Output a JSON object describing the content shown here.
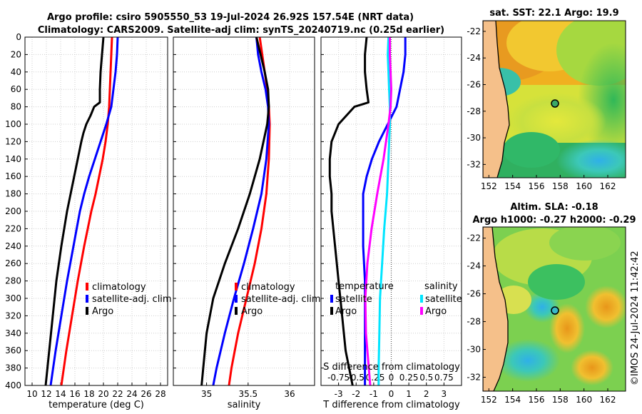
{
  "header": {
    "title_line1": "Argo profile: csiro 5905550_53 19-Jul-2024 26.92S 157.54E (NRT data)",
    "title_line2": "Climatology: CARS2009. Satellite-adj clim: synTS_20240719.nc (0.25d earlier)"
  },
  "colors": {
    "climatology": "#ff0000",
    "satellite": "#0000ff",
    "argo": "#000000",
    "satellite_salinity": "#00e5ff",
    "argo_salinity": "#ff00ff"
  },
  "chart_data": [
    {
      "type": "line",
      "name": "temperature-profile",
      "xlabel": "temperature (deg C)",
      "ylabel": "",
      "xlim": [
        9,
        29
      ],
      "ylim": [
        400,
        0
      ],
      "xticks": [
        10,
        12,
        14,
        16,
        18,
        20,
        22,
        24,
        26,
        28
      ],
      "yticks": [
        0,
        20,
        40,
        60,
        80,
        100,
        120,
        140,
        160,
        180,
        200,
        220,
        240,
        260,
        280,
        300,
        320,
        340,
        360,
        380,
        400
      ],
      "grid": true,
      "legend": [
        "climatology",
        "satellite-adj. clim",
        "Argo"
      ],
      "series": [
        {
          "name": "climatology",
          "color": "#ff0000",
          "depth": [
            0,
            20,
            40,
            60,
            80,
            100,
            120,
            140,
            160,
            180,
            200,
            240,
            280,
            320,
            360,
            400
          ],
          "values": [
            21.2,
            21.1,
            21.0,
            20.9,
            20.8,
            20.6,
            20.3,
            19.9,
            19.4,
            18.9,
            18.3,
            17.3,
            16.4,
            15.6,
            14.8,
            14.1
          ]
        },
        {
          "name": "satellite-adj. clim",
          "color": "#0000ff",
          "depth": [
            0,
            20,
            40,
            60,
            80,
            100,
            120,
            140,
            160,
            180,
            200,
            240,
            280,
            320,
            360,
            400
          ],
          "values": [
            22.0,
            21.9,
            21.7,
            21.4,
            21.1,
            20.4,
            19.6,
            18.8,
            18.0,
            17.3,
            16.7,
            15.8,
            14.9,
            14.1,
            13.3,
            12.6
          ]
        },
        {
          "name": "Argo",
          "color": "#000000",
          "depth": [
            0,
            10,
            20,
            40,
            60,
            75,
            80,
            90,
            100,
            110,
            120,
            140,
            160,
            180,
            200,
            240,
            280,
            320,
            360,
            400
          ],
          "values": [
            20.0,
            19.9,
            19.8,
            19.6,
            19.5,
            19.5,
            18.7,
            18.2,
            17.6,
            17.2,
            16.9,
            16.4,
            15.9,
            15.4,
            14.9,
            14.1,
            13.4,
            12.9,
            12.4,
            11.9
          ]
        }
      ]
    },
    {
      "type": "line",
      "name": "salinity-profile",
      "xlabel": "salinity",
      "xlim": [
        34.6,
        36.3
      ],
      "ylim": [
        400,
        0
      ],
      "xticks": [
        35,
        35.5,
        36
      ],
      "grid": true,
      "legend": [
        "climatology",
        "satellite-adj. clim",
        "Argo"
      ],
      "series": [
        {
          "name": "climatology",
          "color": "#ff0000",
          "depth": [
            0,
            20,
            40,
            60,
            80,
            100,
            140,
            180,
            220,
            260,
            300,
            340,
            380,
            400
          ],
          "values": [
            35.64,
            35.67,
            35.7,
            35.73,
            35.75,
            35.76,
            35.75,
            35.72,
            35.66,
            35.58,
            35.48,
            35.38,
            35.3,
            35.27
          ]
        },
        {
          "name": "satellite-adj. clim",
          "color": "#0000ff",
          "depth": [
            0,
            20,
            40,
            60,
            80,
            100,
            140,
            180,
            220,
            260,
            300,
            340,
            380,
            400
          ],
          "values": [
            35.6,
            35.62,
            35.66,
            35.71,
            35.74,
            35.75,
            35.72,
            35.66,
            35.56,
            35.45,
            35.33,
            35.22,
            35.12,
            35.08
          ]
        },
        {
          "name": "Argo",
          "color": "#000000",
          "depth": [
            0,
            20,
            40,
            60,
            80,
            100,
            140,
            180,
            220,
            260,
            300,
            340,
            380,
            400
          ],
          "values": [
            35.6,
            35.65,
            35.7,
            35.74,
            35.75,
            35.73,
            35.64,
            35.52,
            35.38,
            35.22,
            35.08,
            35.0,
            34.96,
            34.94
          ]
        }
      ]
    },
    {
      "type": "line",
      "name": "difference-profile",
      "xlabel": "T difference from climatology",
      "xlabel_top": "S difference from climatology",
      "xlim": [
        -4,
        4
      ],
      "ylim": [
        400,
        0
      ],
      "xticks": [
        -3,
        -2,
        -1,
        0,
        1,
        2,
        3
      ],
      "xticks_top": [
        "-0.75",
        "-0.5",
        "-0.25",
        "0",
        "0.25",
        "0.5",
        "0.75"
      ],
      "grid": true,
      "legend_left": [
        "temperature",
        "satellite",
        "Argo"
      ],
      "legend_right": [
        "salinity",
        "satellite",
        "Argo"
      ],
      "series": [
        {
          "name": "temperature satellite",
          "color": "#0000ff",
          "depth": [
            0,
            20,
            40,
            60,
            80,
            100,
            120,
            140,
            160,
            180,
            200,
            240,
            280,
            320,
            360,
            400
          ],
          "values": [
            0.8,
            0.8,
            0.7,
            0.5,
            0.3,
            -0.2,
            -0.7,
            -1.1,
            -1.4,
            -1.6,
            -1.6,
            -1.6,
            -1.5,
            -1.5,
            -1.5,
            -1.5
          ]
        },
        {
          "name": "temperature Argo",
          "color": "#000000",
          "depth": [
            0,
            20,
            40,
            60,
            75,
            80,
            100,
            120,
            140,
            160,
            180,
            200,
            240,
            280,
            320,
            360,
            380,
            400
          ],
          "values": [
            -1.4,
            -1.5,
            -1.5,
            -1.4,
            -1.3,
            -2.1,
            -3.0,
            -3.4,
            -3.5,
            -3.5,
            -3.4,
            -3.4,
            -3.2,
            -3.0,
            -2.8,
            -2.6,
            -2.4,
            -2.2
          ]
        },
        {
          "name": "salinity satellite",
          "color": "#00e5ff",
          "depth": [
            0,
            20,
            40,
            60,
            80,
            100,
            140,
            180,
            220,
            260,
            300,
            340,
            380,
            400
          ],
          "values": [
            -0.04,
            -0.05,
            -0.04,
            -0.03,
            -0.02,
            -0.02,
            -0.04,
            -0.06,
            -0.1,
            -0.13,
            -0.16,
            -0.17,
            -0.18,
            -0.18
          ]
        },
        {
          "name": "salinity Argo",
          "color": "#ff00ff",
          "depth": [
            0,
            20,
            40,
            60,
            80,
            100,
            140,
            180,
            220,
            260,
            300,
            340,
            380,
            400
          ],
          "values": [
            -0.02,
            -0.02,
            -0.01,
            0.0,
            -0.01,
            -0.04,
            -0.11,
            -0.2,
            -0.28,
            -0.34,
            -0.37,
            -0.36,
            -0.32,
            -0.3
          ]
        }
      ]
    }
  ],
  "maps": {
    "sst": {
      "title": "sat. SST: 22.1 Argo: 19.9",
      "yticks": [
        "-22",
        "-24",
        "-26",
        "-28",
        "-30",
        "-32"
      ],
      "xticks": [
        "152",
        "154",
        "156",
        "158",
        "160",
        "162"
      ],
      "lon_range": [
        151.5,
        163.5
      ],
      "lat_range": [
        -33,
        -21.2
      ],
      "argo_lon": 157.54,
      "argo_lat": -26.92
    },
    "sla": {
      "title_line1": "Altim. SLA: -0.18",
      "title_line2": "Argo h1000: -0.27 h2000: -0.29",
      "yticks": [
        "-22",
        "-24",
        "-26",
        "-28",
        "-30",
        "-32"
      ],
      "xticks": [
        "152",
        "154",
        "156",
        "158",
        "160",
        "162"
      ],
      "lon_range": [
        151.5,
        163.5
      ],
      "lat_range": [
        -33,
        -21.2
      ],
      "argo_lon": 157.54,
      "argo_lat": -26.92
    }
  },
  "footer": {
    "credit": "©IMOS 24-Jul-2024 11:42:42"
  }
}
